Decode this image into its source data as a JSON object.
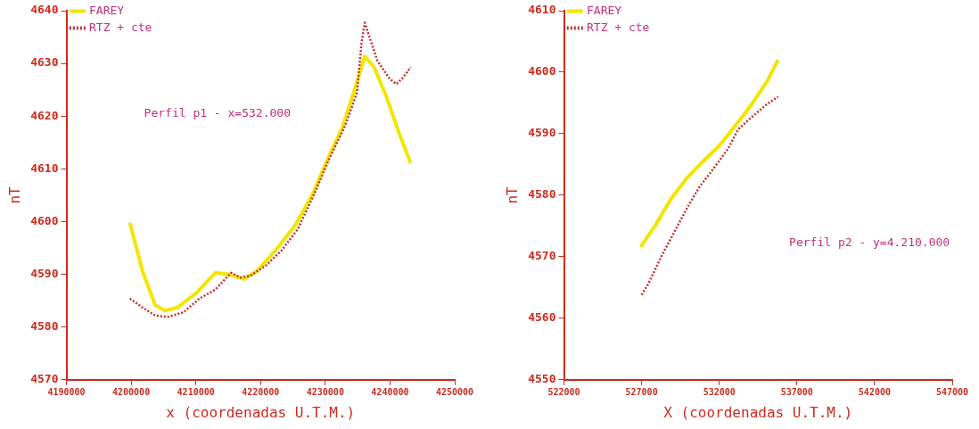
{
  "chart_data": [
    {
      "type": "line",
      "xlabel": "x (coordenadas U.T.M.)",
      "ylabel": "nT",
      "annotations": [
        "Perfil p1 - x=532.000"
      ],
      "legend": "top left",
      "grid": false,
      "marker": "none",
      "xlim": [
        4190000,
        4250000
      ],
      "xticks": [
        4190000,
        4200000,
        4210000,
        4220000,
        4230000,
        4240000,
        4250000
      ],
      "ylim": [
        4570,
        4640
      ],
      "yticks": [
        4570,
        4580,
        4590,
        4600,
        4610,
        4620,
        4630,
        4640
      ],
      "series": [
        {
          "name": "FAREY",
          "color": "#f2e600",
          "line_style": "solid",
          "x": [
            4199800,
            4201760,
            4203700,
            4205200,
            4207150,
            4210100,
            4213000,
            4215000,
            4217450,
            4219400,
            4222350,
            4225300,
            4228200,
            4230200,
            4232600,
            4234600,
            4236100,
            4237550,
            4239500,
            4241450,
            4243200
          ],
          "values": [
            4599.8,
            4590.6,
            4584.2,
            4583.1,
            4583.7,
            4586.5,
            4590.3,
            4590.0,
            4589.1,
            4590.6,
            4594.6,
            4599.2,
            4605.6,
            4611.4,
            4617.7,
            4625.3,
            4631.3,
            4629.3,
            4623.5,
            4616.6,
            4611.1
          ]
        },
        {
          "name": "RTZ + cte",
          "color": "#c0302a",
          "line_style": "dotted",
          "x": [
            4199800,
            4201760,
            4203700,
            4205600,
            4208100,
            4210550,
            4213000,
            4215450,
            4216900,
            4218400,
            4220850,
            4223300,
            4225750,
            4228200,
            4230600,
            4233100,
            4234900,
            4235600,
            4236100,
            4236800,
            4238050,
            4240000,
            4241000,
            4242000,
            4243200
          ],
          "values": [
            4585.4,
            4583.7,
            4582.2,
            4581.9,
            4582.8,
            4585.4,
            4587.1,
            4590.3,
            4589.4,
            4589.7,
            4591.7,
            4594.6,
            4598.6,
            4605.0,
            4611.9,
            4618.3,
            4624.5,
            4633.9,
            4637.7,
            4635.1,
            4630.5,
            4627.0,
            4626.1,
            4627.3,
            4629.3
          ]
        }
      ]
    },
    {
      "type": "line",
      "xlabel": "X (coordenadas U.T.M.)",
      "ylabel": "nT",
      "annotations": [
        "Perfil p2 - y=4.210.000"
      ],
      "legend": "top left",
      "grid": false,
      "marker": "none",
      "xlim": [
        522000,
        547000
      ],
      "xticks": [
        522000,
        527000,
        532000,
        537000,
        542000,
        547000
      ],
      "ylim": [
        4550,
        4610
      ],
      "yticks": [
        4550,
        4560,
        4570,
        4580,
        4590,
        4600,
        4610
      ],
      "series": [
        {
          "name": "FAREY",
          "color": "#f2e600",
          "line_style": "solid",
          "x": [
            526940,
            527860,
            528890,
            529920,
            530950,
            531980,
            533000,
            534040,
            535070,
            535790
          ],
          "values": [
            4571.6,
            4575.0,
            4579.4,
            4582.8,
            4585.5,
            4588.0,
            4591.2,
            4594.6,
            4598.5,
            4602.0
          ]
        },
        {
          "name": "RTZ + cte",
          "color": "#c0302a",
          "line_style": "dotted",
          "x": [
            527000,
            527450,
            528280,
            529100,
            529920,
            530740,
            531770,
            532600,
            533210,
            534040,
            535070,
            535790
          ],
          "values": [
            4563.8,
            4565.7,
            4570.1,
            4574.0,
            4577.9,
            4581.4,
            4584.8,
            4587.7,
            4590.7,
            4592.6,
            4594.8,
            4596.0
          ]
        }
      ]
    }
  ]
}
